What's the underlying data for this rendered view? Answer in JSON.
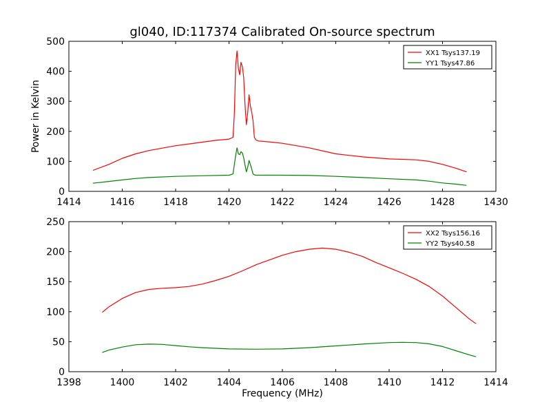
{
  "figure": {
    "title": "gl040, ID:117374 Calibrated On-source spectrum"
  },
  "chart_data": [
    {
      "type": "line",
      "title": "gl040, ID:117374 Calibrated On-source spectrum",
      "xlabel": "",
      "ylabel": "Power in Kelvin",
      "xlim": [
        1414,
        1430
      ],
      "ylim": [
        0,
        500
      ],
      "xticks": [
        1414,
        1416,
        1418,
        1420,
        1422,
        1424,
        1426,
        1428,
        1430
      ],
      "yticks": [
        0,
        100,
        200,
        300,
        400,
        500
      ],
      "legend_position": "top-right",
      "series": [
        {
          "name": "XX1 Tsys137.19",
          "color": "#ff0000",
          "x": [
            1414.9,
            1415.5,
            1416.0,
            1416.5,
            1417.0,
            1417.5,
            1418.0,
            1418.5,
            1419.0,
            1419.5,
            1420.0,
            1420.15,
            1420.2,
            1420.25,
            1420.3,
            1420.35,
            1420.4,
            1420.45,
            1420.5,
            1420.55,
            1420.6,
            1420.65,
            1420.7,
            1420.75,
            1420.8,
            1420.85,
            1420.9,
            1420.95,
            1421.0,
            1421.1,
            1421.5,
            1422.0,
            1423.0,
            1424.0,
            1425.0,
            1426.0,
            1427.0,
            1427.5,
            1428.0,
            1428.5,
            1428.9
          ],
          "y": [
            70,
            90,
            110,
            125,
            136,
            144,
            152,
            158,
            164,
            170,
            174,
            180,
            260,
            420,
            468,
            410,
            388,
            430,
            415,
            380,
            290,
            222,
            260,
            322,
            285,
            265,
            235,
            180,
            172,
            168,
            165,
            160,
            145,
            125,
            115,
            108,
            105,
            100,
            90,
            77,
            65
          ]
        },
        {
          "name": "YY1 Tsys47.86",
          "color": "#008000",
          "x": [
            1414.9,
            1415.5,
            1416.0,
            1416.5,
            1417.0,
            1418.0,
            1419.0,
            1420.0,
            1420.15,
            1420.25,
            1420.3,
            1420.35,
            1420.4,
            1420.45,
            1420.5,
            1420.55,
            1420.6,
            1420.65,
            1420.7,
            1420.75,
            1420.8,
            1420.85,
            1420.9,
            1420.95,
            1421.0,
            1422.0,
            1423.0,
            1424.0,
            1425.0,
            1426.0,
            1427.0,
            1427.5,
            1428.0,
            1428.5,
            1428.9
          ],
          "y": [
            27,
            33,
            38,
            43,
            46,
            50,
            52,
            54,
            58,
            120,
            145,
            125,
            122,
            132,
            128,
            112,
            88,
            65,
            80,
            103,
            90,
            75,
            58,
            55,
            54,
            54,
            53,
            50,
            46,
            42,
            38,
            34,
            28,
            24,
            20
          ]
        }
      ]
    },
    {
      "type": "line",
      "title": "",
      "xlabel": "Frequency (MHz)",
      "ylabel": "",
      "xlim": [
        1398,
        1414
      ],
      "ylim": [
        0,
        250
      ],
      "xticks": [
        1398,
        1400,
        1402,
        1404,
        1406,
        1408,
        1410,
        1412,
        1414
      ],
      "yticks": [
        0,
        50,
        100,
        150,
        200,
        250
      ],
      "legend_position": "top-right",
      "series": [
        {
          "name": "XX2 Tsys156.16",
          "color": "#ff0000",
          "x": [
            1399.25,
            1399.5,
            1400.0,
            1400.5,
            1401.0,
            1401.5,
            1402.0,
            1402.5,
            1403.0,
            1403.5,
            1404.0,
            1404.5,
            1405.0,
            1405.5,
            1406.0,
            1406.5,
            1407.0,
            1407.5,
            1408.0,
            1408.5,
            1409.0,
            1409.5,
            1410.0,
            1410.5,
            1411.0,
            1411.5,
            1412.0,
            1412.5,
            1413.0,
            1413.25
          ],
          "y": [
            99,
            108,
            122,
            132,
            137,
            139,
            140,
            142,
            146,
            152,
            159,
            168,
            178,
            186,
            194,
            200,
            204,
            206,
            204,
            199,
            192,
            182,
            173,
            164,
            154,
            142,
            126,
            107,
            88,
            80
          ]
        },
        {
          "name": "YY2 Tsys40.58",
          "color": "#008000",
          "x": [
            1399.25,
            1399.5,
            1400.0,
            1400.5,
            1401.0,
            1401.5,
            1402.0,
            1402.5,
            1403.0,
            1403.5,
            1404.0,
            1405.0,
            1406.0,
            1407.0,
            1408.0,
            1409.0,
            1410.0,
            1410.5,
            1411.0,
            1411.5,
            1412.0,
            1412.5,
            1413.0,
            1413.25
          ],
          "y": [
            32,
            36,
            41,
            45,
            46,
            45.5,
            43.5,
            41.5,
            40,
            39,
            38,
            37.5,
            38,
            40,
            43,
            46,
            48.5,
            49,
            48.5,
            46.5,
            42,
            35,
            28,
            25
          ]
        }
      ]
    }
  ]
}
